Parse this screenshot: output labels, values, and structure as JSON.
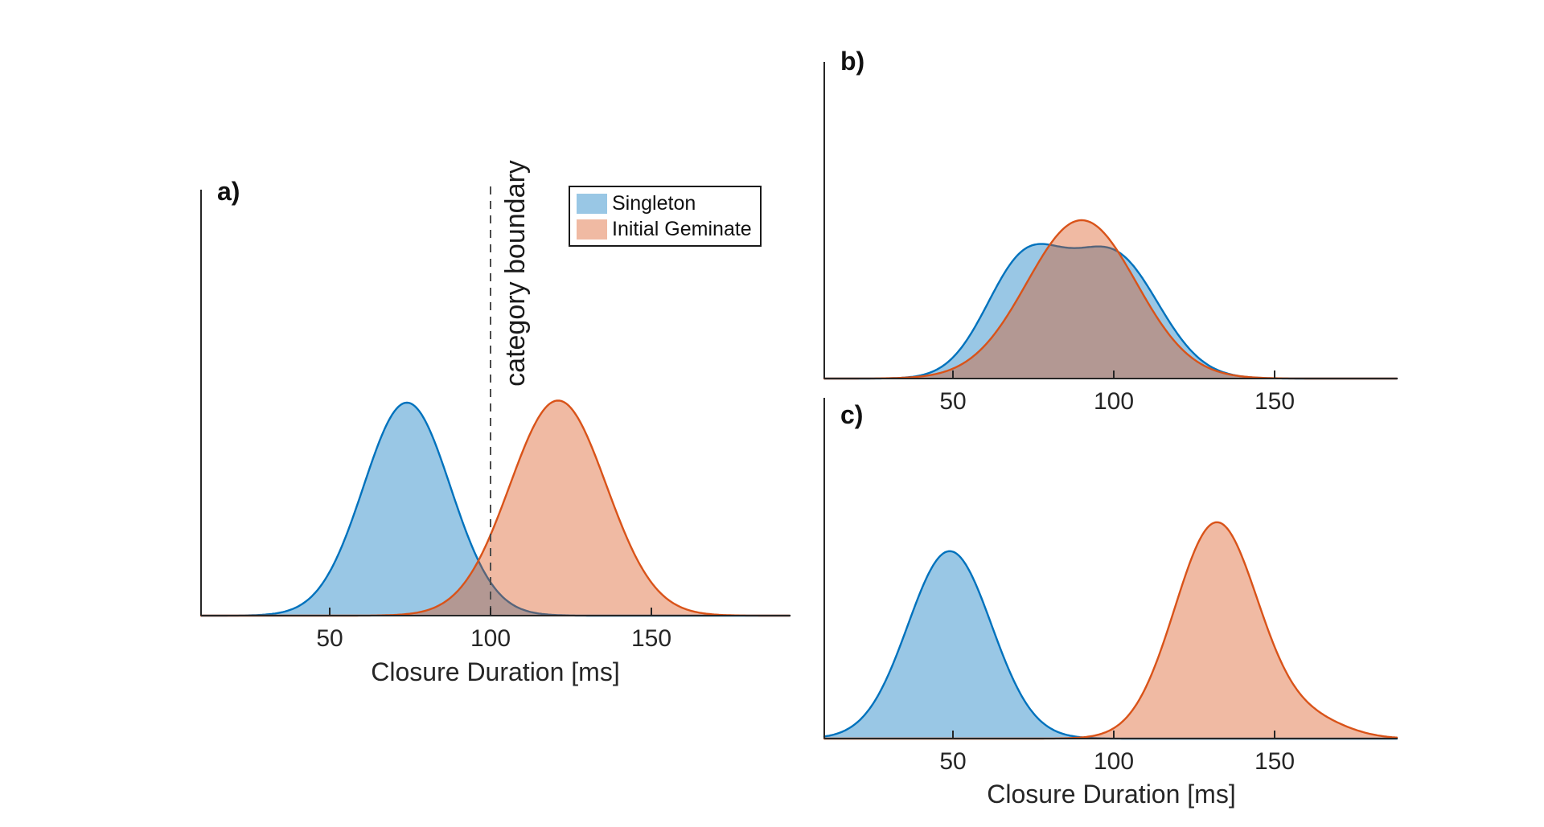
{
  "figure": {
    "background": "#ffffff",
    "axis_color": "#262626",
    "text_color": "#1f1f1f",
    "fill_opacity": 0.4,
    "vline_color": "#4d4d4d",
    "legend": {
      "position": "top-right-of-panel-a",
      "items": [
        {
          "label": "Singleton",
          "color_hex": "#0072BD"
        },
        {
          "label": "Initial Geminate",
          "color_hex": "#D95319"
        }
      ]
    }
  },
  "chart_data": [
    {
      "panel_label": "a)",
      "type": "area",
      "subtype": "density-curves",
      "xlabel": "Closure Duration [ms]",
      "ylabel": "",
      "x_ticks": [
        50,
        100,
        150
      ],
      "x_tick_labels": [
        "50",
        "100",
        "150"
      ],
      "x_range": [
        10,
        193
      ],
      "grid": false,
      "legend_visible": true,
      "series": [
        {
          "name": "Singleton",
          "color_hex": "#0072BD",
          "peak_frac": 0.5,
          "components": [
            {
              "mean": 74,
              "sd": 13.5,
              "weight": 1
            }
          ]
        },
        {
          "name": "Initial Geminate",
          "color_hex": "#D95319",
          "peak_frac": 0.505,
          "components": [
            {
              "mean": 121,
              "sd": 15,
              "weight": 1
            }
          ]
        }
      ],
      "vline": {
        "x": 100,
        "style": "dashed",
        "label": "category boundary"
      }
    },
    {
      "panel_label": "b)",
      "type": "area",
      "subtype": "density-curves",
      "xlabel": "",
      "ylabel": "",
      "x_ticks": [
        50,
        100,
        150
      ],
      "x_tick_labels": [
        "50",
        "100",
        "150"
      ],
      "x_range": [
        10,
        188
      ],
      "grid": false,
      "legend_visible": false,
      "series": [
        {
          "name": "Singleton",
          "color_hex": "#0072BD",
          "peak_frac": 0.425,
          "components": [
            {
              "mean": 72,
              "sd": 12,
              "weight": 0.48
            },
            {
              "mean": 100,
              "sd": 14,
              "weight": 0.52
            }
          ]
        },
        {
          "name": "Initial Geminate",
          "color_hex": "#D95319",
          "peak_frac": 0.5,
          "components": [
            {
              "mean": 90,
              "sd": 17,
              "weight": 1
            }
          ]
        }
      ],
      "vline": null
    },
    {
      "panel_label": "c)",
      "type": "area",
      "subtype": "density-curves",
      "xlabel": "Closure Duration [ms]",
      "ylabel": "",
      "x_ticks": [
        50,
        100,
        150
      ],
      "x_tick_labels": [
        "50",
        "100",
        "150"
      ],
      "x_range": [
        10,
        188
      ],
      "grid": false,
      "legend_visible": false,
      "series": [
        {
          "name": "Singleton",
          "color_hex": "#0072BD",
          "peak_frac": 0.55,
          "components": [
            {
              "mean": 49,
              "sd": 13,
              "weight": 1
            }
          ]
        },
        {
          "name": "Initial Geminate",
          "color_hex": "#D95319",
          "peak_frac": 0.635,
          "components": [
            {
              "mean": 132,
              "sd": 13,
              "weight": 0.93
            },
            {
              "mean": 162,
              "sd": 11,
              "weight": 0.07
            }
          ]
        }
      ],
      "vline": null
    }
  ]
}
